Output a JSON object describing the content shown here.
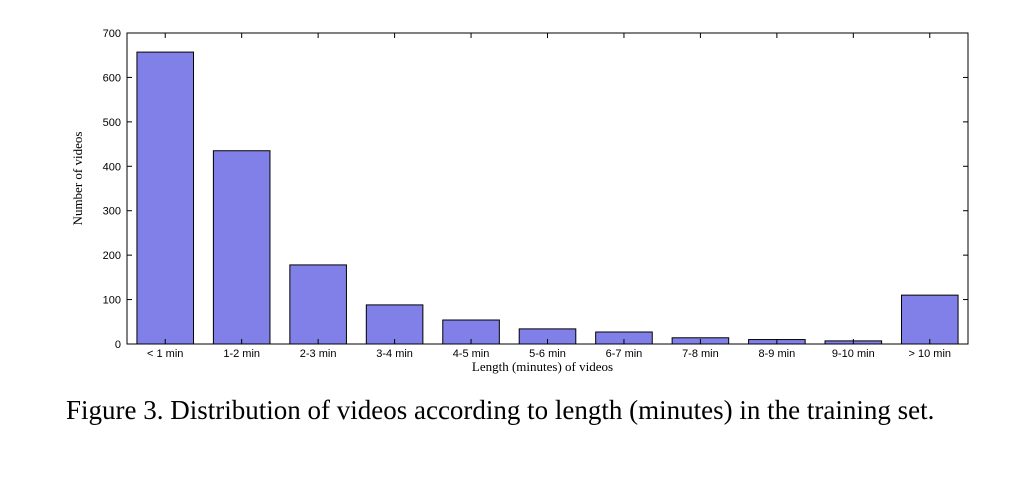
{
  "caption": "Figure 3. Distribution of videos according to length (minutes) in the training set.",
  "colors": {
    "bar_fill": "#8080e8",
    "bar_stroke": "#000000",
    "axis": "#000000"
  },
  "chart_data": {
    "type": "bar",
    "title": "",
    "xlabel": "Length (minutes)  of videos",
    "ylabel": "Number of videos",
    "categories": [
      "< 1 min",
      "1-2 min",
      "2-3 min",
      "3-4 min",
      "4-5 min",
      "5-6 min",
      "6-7 min",
      "7-8 min",
      "8-9 min",
      "9-10 min",
      "> 10 min"
    ],
    "values": [
      657,
      435,
      178,
      88,
      54,
      34,
      27,
      14,
      10,
      7,
      110
    ],
    "ylim": [
      0,
      700
    ],
    "yticks": [
      0,
      100,
      200,
      300,
      400,
      500,
      600,
      700
    ],
    "grid": false,
    "legend": "none"
  }
}
